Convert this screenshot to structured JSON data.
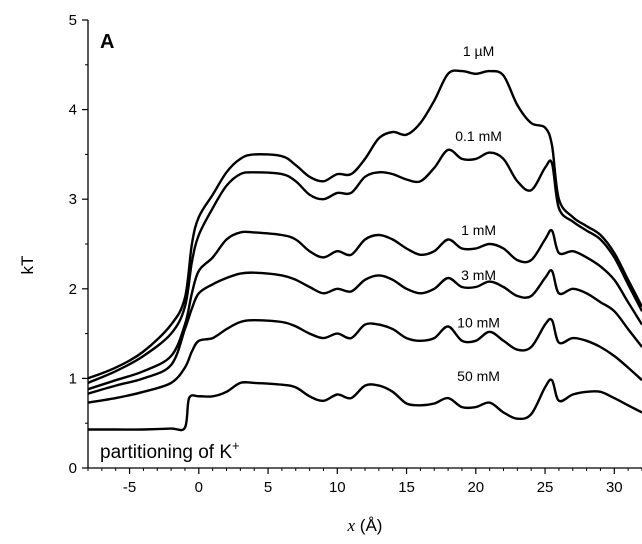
{
  "chart_data": {
    "type": "line",
    "panel_label": "A",
    "xlabel_var": "x",
    "xlabel_unit": " (Å)",
    "ylabel": "kT",
    "annotation": "partitioning of K",
    "annotation_sup": "+",
    "xlim": [
      -8,
      32
    ],
    "ylim": [
      0,
      5
    ],
    "x_ticks": [
      -5,
      0,
      5,
      10,
      15,
      20,
      25,
      30
    ],
    "y_ticks": [
      0,
      1,
      2,
      3,
      4,
      5
    ],
    "grid": false,
    "line_color": "#000000",
    "series": [
      {
        "name": "1 µM",
        "label_at": [
          20.2,
          4.6
        ],
        "points": [
          [
            -8,
            1.0
          ],
          [
            -6,
            1.12
          ],
          [
            -4,
            1.3
          ],
          [
            -2,
            1.6
          ],
          [
            -1,
            1.9
          ],
          [
            -0.5,
            2.5
          ],
          [
            0,
            2.8
          ],
          [
            1,
            3.05
          ],
          [
            2,
            3.3
          ],
          [
            3,
            3.45
          ],
          [
            4,
            3.5
          ],
          [
            6,
            3.48
          ],
          [
            7,
            3.38
          ],
          [
            8,
            3.25
          ],
          [
            9,
            3.2
          ],
          [
            10,
            3.28
          ],
          [
            11,
            3.28
          ],
          [
            12,
            3.45
          ],
          [
            13,
            3.68
          ],
          [
            14,
            3.75
          ],
          [
            15,
            3.72
          ],
          [
            16,
            3.85
          ],
          [
            17,
            4.1
          ],
          [
            18,
            4.4
          ],
          [
            19,
            4.43
          ],
          [
            20,
            4.4
          ],
          [
            21,
            4.43
          ],
          [
            22,
            4.38
          ],
          [
            23,
            4.05
          ],
          [
            24,
            3.85
          ],
          [
            25,
            3.8
          ],
          [
            25.5,
            3.6
          ],
          [
            26,
            3.0
          ],
          [
            27,
            2.8
          ],
          [
            28,
            2.7
          ],
          [
            29,
            2.6
          ],
          [
            30,
            2.4
          ],
          [
            31,
            2.1
          ],
          [
            32,
            1.8
          ]
        ]
      },
      {
        "name": "0.1 mM",
        "label_at": [
          20.2,
          3.65
        ],
        "points": [
          [
            -8,
            0.95
          ],
          [
            -6,
            1.08
          ],
          [
            -4,
            1.25
          ],
          [
            -2,
            1.5
          ],
          [
            -1,
            1.8
          ],
          [
            -0.5,
            2.3
          ],
          [
            0,
            2.6
          ],
          [
            1,
            2.9
          ],
          [
            2,
            3.15
          ],
          [
            3,
            3.28
          ],
          [
            4,
            3.3
          ],
          [
            6,
            3.28
          ],
          [
            7,
            3.2
          ],
          [
            8,
            3.05
          ],
          [
            9,
            3.0
          ],
          [
            10,
            3.07
          ],
          [
            11,
            3.07
          ],
          [
            12,
            3.25
          ],
          [
            13,
            3.3
          ],
          [
            14,
            3.28
          ],
          [
            15,
            3.22
          ],
          [
            16,
            3.2
          ],
          [
            17,
            3.35
          ],
          [
            18,
            3.55
          ],
          [
            19,
            3.45
          ],
          [
            20,
            3.45
          ],
          [
            21,
            3.52
          ],
          [
            22,
            3.45
          ],
          [
            23,
            3.2
          ],
          [
            24,
            3.1
          ],
          [
            25,
            3.35
          ],
          [
            25.5,
            3.4
          ],
          [
            26,
            2.9
          ],
          [
            27,
            2.75
          ],
          [
            28,
            2.65
          ],
          [
            29,
            2.55
          ],
          [
            30,
            2.35
          ],
          [
            31,
            2.05
          ],
          [
            32,
            1.75
          ]
        ]
      },
      {
        "name": "1 mM",
        "label_at": [
          20.2,
          2.6
        ],
        "points": [
          [
            -8,
            0.88
          ],
          [
            -6,
            0.98
          ],
          [
            -4,
            1.08
          ],
          [
            -2,
            1.25
          ],
          [
            -1,
            1.6
          ],
          [
            -0.5,
            1.95
          ],
          [
            0,
            2.2
          ],
          [
            1,
            2.35
          ],
          [
            2,
            2.55
          ],
          [
            3,
            2.63
          ],
          [
            4,
            2.63
          ],
          [
            6,
            2.6
          ],
          [
            7,
            2.55
          ],
          [
            8,
            2.42
          ],
          [
            9,
            2.35
          ],
          [
            10,
            2.42
          ],
          [
            11,
            2.38
          ],
          [
            12,
            2.55
          ],
          [
            13,
            2.6
          ],
          [
            14,
            2.55
          ],
          [
            15,
            2.45
          ],
          [
            16,
            2.38
          ],
          [
            17,
            2.42
          ],
          [
            18,
            2.55
          ],
          [
            19,
            2.45
          ],
          [
            20,
            2.45
          ],
          [
            21,
            2.5
          ],
          [
            22,
            2.45
          ],
          [
            23,
            2.32
          ],
          [
            24,
            2.32
          ],
          [
            25,
            2.55
          ],
          [
            25.5,
            2.65
          ],
          [
            26,
            2.4
          ],
          [
            27,
            2.42
          ],
          [
            28,
            2.35
          ],
          [
            29,
            2.25
          ],
          [
            30,
            2.1
          ],
          [
            31,
            1.85
          ],
          [
            32,
            1.6
          ]
        ]
      },
      {
        "name": "3 mM",
        "label_at": [
          20.2,
          2.1
        ],
        "points": [
          [
            -8,
            0.83
          ],
          [
            -6,
            0.92
          ],
          [
            -4,
            1.0
          ],
          [
            -2,
            1.15
          ],
          [
            -1,
            1.55
          ],
          [
            -0.5,
            1.78
          ],
          [
            0,
            1.95
          ],
          [
            1,
            2.05
          ],
          [
            2,
            2.12
          ],
          [
            3,
            2.17
          ],
          [
            4,
            2.18
          ],
          [
            6,
            2.15
          ],
          [
            7,
            2.1
          ],
          [
            8,
            2.02
          ],
          [
            9,
            1.95
          ],
          [
            10,
            2.0
          ],
          [
            11,
            1.97
          ],
          [
            12,
            2.1
          ],
          [
            13,
            2.15
          ],
          [
            14,
            2.1
          ],
          [
            15,
            2.0
          ],
          [
            16,
            1.95
          ],
          [
            17,
            2.0
          ],
          [
            18,
            2.12
          ],
          [
            19,
            2.02
          ],
          [
            20,
            2.02
          ],
          [
            21,
            2.08
          ],
          [
            22,
            2.02
          ],
          [
            23,
            1.92
          ],
          [
            24,
            1.92
          ],
          [
            25,
            2.12
          ],
          [
            25.5,
            2.2
          ],
          [
            26,
            1.95
          ],
          [
            27,
            2.0
          ],
          [
            28,
            1.95
          ],
          [
            29,
            1.85
          ],
          [
            30,
            1.75
          ],
          [
            31,
            1.55
          ],
          [
            32,
            1.35
          ]
        ]
      },
      {
        "name": "10 mM",
        "label_at": [
          20.2,
          1.57
        ],
        "points": [
          [
            -8,
            0.73
          ],
          [
            -6,
            0.78
          ],
          [
            -4,
            0.85
          ],
          [
            -2,
            0.95
          ],
          [
            -1,
            1.12
          ],
          [
            -0.5,
            1.3
          ],
          [
            0,
            1.42
          ],
          [
            1,
            1.45
          ],
          [
            2,
            1.55
          ],
          [
            3,
            1.63
          ],
          [
            4,
            1.65
          ],
          [
            6,
            1.63
          ],
          [
            7,
            1.58
          ],
          [
            8,
            1.5
          ],
          [
            9,
            1.45
          ],
          [
            10,
            1.5
          ],
          [
            11,
            1.45
          ],
          [
            12,
            1.6
          ],
          [
            13,
            1.6
          ],
          [
            14,
            1.55
          ],
          [
            15,
            1.45
          ],
          [
            16,
            1.42
          ],
          [
            17,
            1.45
          ],
          [
            18,
            1.58
          ],
          [
            19,
            1.42
          ],
          [
            20,
            1.42
          ],
          [
            21,
            1.52
          ],
          [
            22,
            1.42
          ],
          [
            23,
            1.32
          ],
          [
            24,
            1.35
          ],
          [
            25,
            1.6
          ],
          [
            25.5,
            1.65
          ],
          [
            26,
            1.4
          ],
          [
            27,
            1.45
          ],
          [
            28,
            1.42
          ],
          [
            29,
            1.35
          ],
          [
            30,
            1.25
          ],
          [
            31,
            1.12
          ],
          [
            32,
            0.98
          ]
        ]
      },
      {
        "name": "50 mM",
        "label_at": [
          20.2,
          0.97
        ],
        "points": [
          [
            -8,
            0.43
          ],
          [
            -6,
            0.43
          ],
          [
            -4,
            0.43
          ],
          [
            -2,
            0.44
          ],
          [
            -1,
            0.45
          ],
          [
            -0.7,
            0.78
          ],
          [
            0,
            0.8
          ],
          [
            1,
            0.8
          ],
          [
            2,
            0.85
          ],
          [
            3,
            0.95
          ],
          [
            4,
            0.95
          ],
          [
            6,
            0.93
          ],
          [
            7,
            0.9
          ],
          [
            8,
            0.8
          ],
          [
            9,
            0.75
          ],
          [
            10,
            0.82
          ],
          [
            11,
            0.78
          ],
          [
            12,
            0.92
          ],
          [
            13,
            0.92
          ],
          [
            14,
            0.85
          ],
          [
            15,
            0.72
          ],
          [
            16,
            0.7
          ],
          [
            17,
            0.72
          ],
          [
            18,
            0.78
          ],
          [
            19,
            0.68
          ],
          [
            20,
            0.68
          ],
          [
            21,
            0.73
          ],
          [
            22,
            0.62
          ],
          [
            23,
            0.55
          ],
          [
            24,
            0.6
          ],
          [
            25,
            0.9
          ],
          [
            25.5,
            0.98
          ],
          [
            26,
            0.75
          ],
          [
            27,
            0.82
          ],
          [
            28,
            0.85
          ],
          [
            29,
            0.85
          ],
          [
            30,
            0.78
          ],
          [
            31,
            0.7
          ],
          [
            32,
            0.62
          ]
        ]
      }
    ]
  }
}
